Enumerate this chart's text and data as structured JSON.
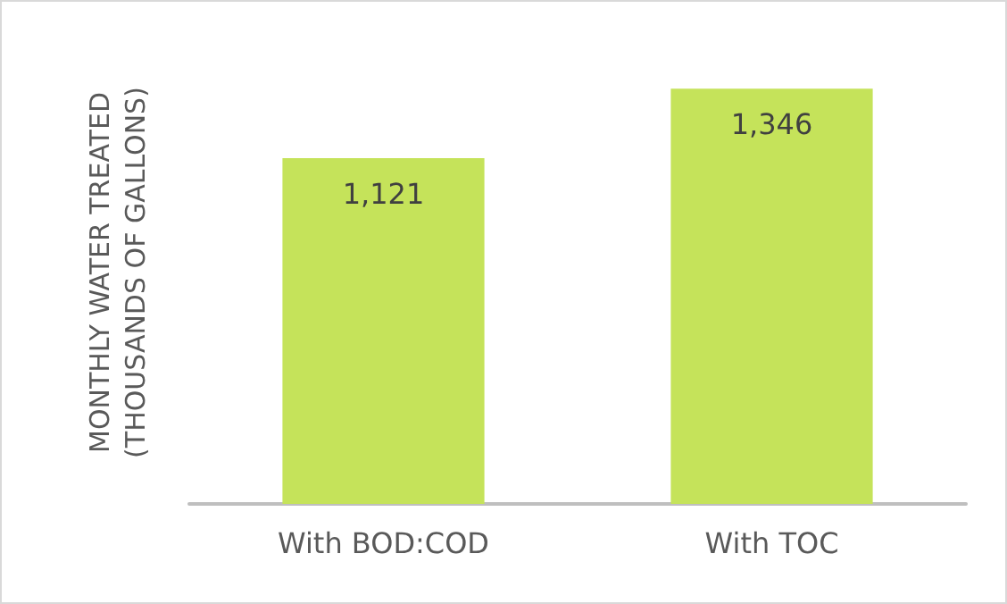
{
  "chart_data": {
    "type": "bar",
    "ylabel": "MONTHLY WATER TREATED\n(THOUSANDS OF GALLONS)",
    "categories": [
      "With BOD:COD",
      "With TOC"
    ],
    "values": [
      1121,
      1346
    ],
    "value_labels": [
      "1,121",
      "1,346"
    ],
    "color": "#c5e35a",
    "tick_labels": "x",
    "grid": false
  }
}
